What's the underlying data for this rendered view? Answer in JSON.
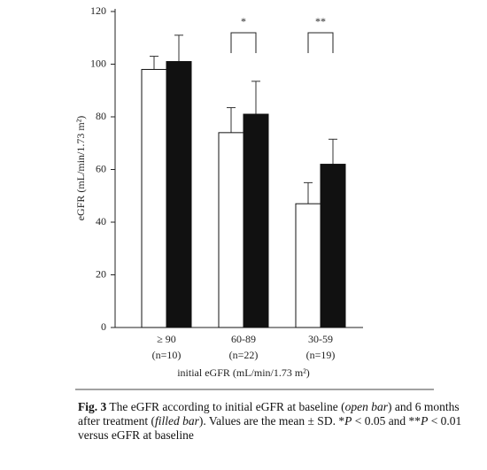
{
  "chart_data": {
    "type": "bar",
    "y_label": "eGFR (mL/min/1.73 m²)",
    "x_label": "initial eGFR (mL/min/1.73 m²)",
    "categories": [
      "≥ 90",
      "60-89",
      "30-59"
    ],
    "n_labels": [
      "(n=10)",
      "(n=22)",
      "(n=19)"
    ],
    "series": [
      {
        "color": "#ffffff",
        "values": [
          98,
          74,
          47
        ],
        "errors": [
          5,
          9.5,
          8
        ]
      },
      {
        "color": "#111111",
        "values": [
          101,
          81,
          62
        ],
        "errors": [
          10,
          12.5,
          9.5
        ]
      }
    ],
    "ylim": [
      0,
      120
    ],
    "yticks": [
      0,
      20,
      40,
      60,
      80,
      100,
      120
    ],
    "significance": [
      {
        "category": 1,
        "label": "*"
      },
      {
        "category": 2,
        "label": "**"
      }
    ]
  },
  "caption": {
    "segments": [
      {
        "text": "Fig. 3",
        "style": "bold"
      },
      {
        "text": " The eGFR according to initial eGFR at baseline (",
        "style": "normal"
      },
      {
        "text": "open bar",
        "style": "italic"
      },
      {
        "text": ") and 6 months after treatment (",
        "style": "normal"
      },
      {
        "text": "filled bar",
        "style": "italic"
      },
      {
        "text": "). Values are the mean ± SD. *",
        "style": "normal"
      },
      {
        "text": "P",
        "style": "italic"
      },
      {
        "text": " < 0.05 and **",
        "style": "normal"
      },
      {
        "text": "P",
        "style": "italic"
      },
      {
        "text": " < 0.01 versus eGFR at baseline",
        "style": "normal"
      }
    ]
  }
}
